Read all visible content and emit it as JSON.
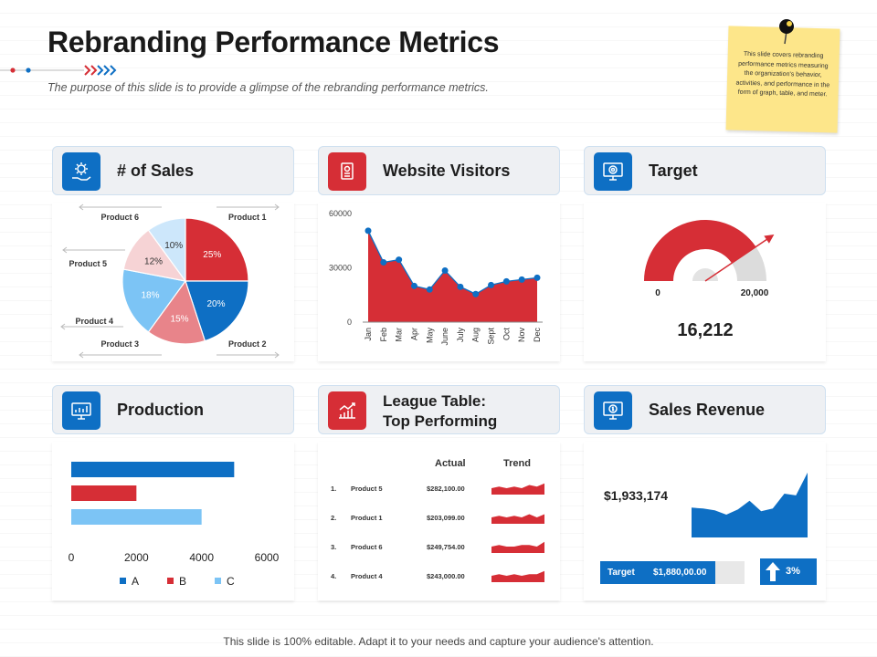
{
  "header": {
    "title": "Rebranding Performance Metrics",
    "subtitle": "The purpose of this slide is to provide a glimpse of the rebranding performance metrics."
  },
  "sticky_note": {
    "text": "This slide covers rebranding performance metrics measuring the organization's behavior, activities, and performance in the form of graph, table, and meter."
  },
  "panels": {
    "sales": {
      "title": "# of Sales",
      "icon": "gear-hand-icon"
    },
    "visitors": {
      "title": "Website Visitors",
      "icon": "document-icon"
    },
    "target": {
      "title": "Target",
      "icon": "target-monitor-icon"
    },
    "production": {
      "title": "Production",
      "icon": "monitor-chart-icon"
    },
    "league": {
      "title_line1": "League Table:",
      "title_line2": "Top Performing",
      "icon": "growth-chart-icon"
    },
    "revenue": {
      "title": "Sales Revenue",
      "icon": "money-monitor-icon"
    }
  },
  "colors": {
    "blue": "#0e6fc4",
    "red": "#d62e36",
    "light_blue": "#7cc4f5",
    "pink": "#e8848a",
    "light_pink": "#f6d3d5",
    "pale_blue": "#cde7fb",
    "grey": "#d9d9d9"
  },
  "chart_data": [
    {
      "type": "pie",
      "categories": [
        "Product 1",
        "Product 2",
        "Product 3",
        "Product 4",
        "Product 5",
        "Product 6"
      ],
      "values": [
        25,
        20,
        15,
        18,
        12,
        10
      ],
      "labels": [
        "25%",
        "20%",
        "15%",
        "18%",
        "12%",
        "10%"
      ]
    },
    {
      "type": "area",
      "categories": [
        "Jan",
        "Feb",
        "Mar",
        "Apr",
        "May",
        "June",
        "July",
        "Aug",
        "Sept",
        "Oct",
        "Nov",
        "Dec"
      ],
      "values": [
        50500,
        33000,
        34500,
        20000,
        18000,
        28500,
        19500,
        15500,
        20500,
        22500,
        23500,
        24500
      ],
      "yticks": [
        "60000",
        "30000",
        "0"
      ],
      "ylim": [
        0,
        60000
      ]
    },
    {
      "type": "gauge",
      "value": 16212,
      "value_label": "16,212",
      "min_label": "0",
      "max_label": "20,000",
      "range": [
        0,
        20000
      ]
    },
    {
      "type": "bar",
      "orientation": "horizontal",
      "series": [
        {
          "name": "A",
          "values": [
            5000
          ]
        },
        {
          "name": "B",
          "values": [
            2000
          ]
        },
        {
          "name": "C",
          "values": [
            4000
          ]
        }
      ],
      "xticks": [
        "0",
        "2000",
        "4000",
        "6000"
      ],
      "xlim": [
        0,
        6000
      ]
    },
    {
      "type": "table",
      "columns": [
        "Actual",
        "Trend"
      ],
      "rows": [
        {
          "rank": "1.",
          "name": "Product 5",
          "actual": "$282,100.00",
          "trend": [
            4,
            5,
            4,
            5,
            4,
            6,
            5,
            7
          ]
        },
        {
          "rank": "2.",
          "name": "Product 1",
          "actual": "$203,099.00",
          "trend": [
            4,
            5,
            4,
            5,
            4,
            6,
            4,
            6
          ]
        },
        {
          "rank": "3.",
          "name": "Product 6",
          "actual": "$249,754.00",
          "trend": [
            4,
            5,
            4,
            4,
            5,
            5,
            4,
            7
          ]
        },
        {
          "rank": "4.",
          "name": "Product 4",
          "actual": "$243,000.00",
          "trend": [
            4,
            5,
            4,
            5,
            4,
            5,
            5,
            7
          ]
        }
      ]
    },
    {
      "type": "area",
      "value_label": "$1,933,174",
      "values": [
        3.4,
        3.3,
        3.1,
        2.6,
        3.2,
        4.2,
        3.0,
        3.3,
        5.0,
        4.8,
        7.4
      ],
      "target_label": "Target",
      "target_value": "$1,880,00.00",
      "target_fill": 0.8,
      "change": "3%"
    }
  ],
  "footer": "This slide is 100% editable. Adapt it to your needs and capture your audience's attention."
}
